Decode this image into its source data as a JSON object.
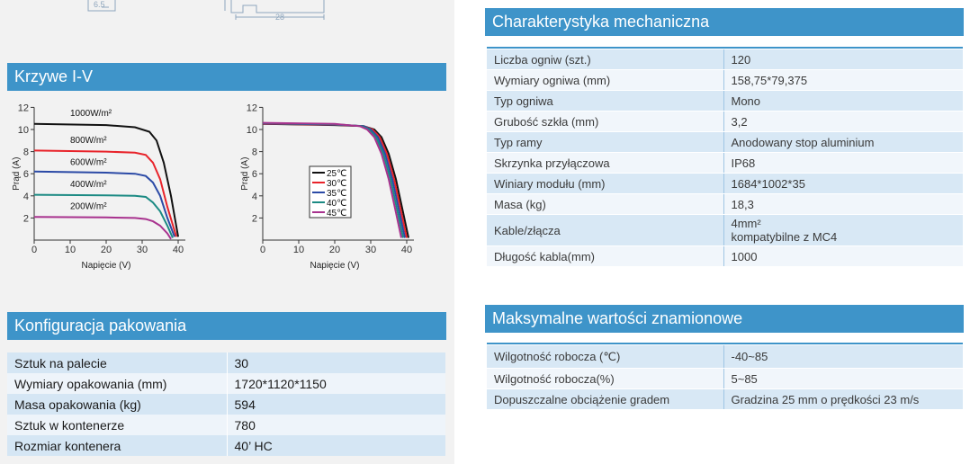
{
  "top_drawing": {
    "dim_a": "6.5",
    "dim_b": "28"
  },
  "iv_section": {
    "title": "Krzywe I-V",
    "chart_data": [
      {
        "type": "line",
        "title": "",
        "xlabel": "Napięcie (V)",
        "ylabel": "Prąd (A)",
        "xlim": [
          0,
          42
        ],
        "ylim": [
          0,
          12
        ],
        "x_ticks": [
          "0",
          "10",
          "20",
          "30",
          "40"
        ],
        "y_ticks": [
          "2",
          "4",
          "6",
          "8",
          "10",
          "12"
        ],
        "series": [
          {
            "name": "1000W/m²",
            "color": "#111111",
            "points": [
              [
                0,
                10.5
              ],
              [
                20,
                10.4
              ],
              [
                28,
                10.2
              ],
              [
                32,
                9.8
              ],
              [
                34,
                9.0
              ],
              [
                36,
                7.0
              ],
              [
                38,
                4.0
              ],
              [
                40,
                0.3
              ]
            ]
          },
          {
            "name": "800W/m²",
            "color": "#e8232a",
            "points": [
              [
                0,
                8.1
              ],
              [
                20,
                8.0
              ],
              [
                28,
                7.9
              ],
              [
                31,
                7.7
              ],
              [
                33,
                7.0
              ],
              [
                35,
                5.5
              ],
              [
                37,
                3.0
              ],
              [
                39.5,
                0.3
              ]
            ]
          },
          {
            "name": "600W/m²",
            "color": "#2b4aa6",
            "points": [
              [
                0,
                6.2
              ],
              [
                20,
                6.1
              ],
              [
                28,
                6.0
              ],
              [
                31,
                5.8
              ],
              [
                33,
                5.2
              ],
              [
                35,
                4.0
              ],
              [
                37,
                2.0
              ],
              [
                39,
                0.3
              ]
            ]
          },
          {
            "name": "400W/m²",
            "color": "#1b8a83",
            "points": [
              [
                0,
                4.1
              ],
              [
                20,
                4.05
              ],
              [
                28,
                4.0
              ],
              [
                31,
                3.9
              ],
              [
                33,
                3.4
              ],
              [
                35,
                2.6
              ],
              [
                37,
                1.3
              ],
              [
                38.5,
                0.2
              ]
            ]
          },
          {
            "name": "200W/m²",
            "color": "#a8328e",
            "points": [
              [
                0,
                2.1
              ],
              [
                20,
                2.05
              ],
              [
                28,
                2.0
              ],
              [
                31,
                1.9
              ],
              [
                33,
                1.7
              ],
              [
                35,
                1.3
              ],
              [
                37,
                0.6
              ],
              [
                38,
                0.1
              ]
            ]
          }
        ]
      },
      {
        "type": "line",
        "title": "",
        "xlabel": "Napięcie (V)",
        "ylabel": "Prąd (A)",
        "xlim": [
          0,
          42
        ],
        "ylim": [
          0,
          12
        ],
        "x_ticks": [
          "0",
          "10",
          "20",
          "30",
          "40"
        ],
        "y_ticks": [
          "2",
          "4",
          "6",
          "8",
          "10",
          "12"
        ],
        "legend": "center",
        "series": [
          {
            "name": "25℃",
            "color": "#111111",
            "points": [
              [
                0,
                10.5
              ],
              [
                20,
                10.4
              ],
              [
                28,
                10.3
              ],
              [
                31,
                10.0
              ],
              [
                33,
                9.3
              ],
              [
                35,
                7.8
              ],
              [
                37,
                5.5
              ],
              [
                39,
                2.5
              ],
              [
                40.5,
                0.2
              ]
            ]
          },
          {
            "name": "30℃",
            "color": "#e8232a",
            "points": [
              [
                0,
                10.52
              ],
              [
                20,
                10.42
              ],
              [
                28,
                10.3
              ],
              [
                30.5,
                10.0
              ],
              [
                32.5,
                9.3
              ],
              [
                34.5,
                7.8
              ],
              [
                36.5,
                5.5
              ],
              [
                38.5,
                2.5
              ],
              [
                40,
                0.2
              ]
            ]
          },
          {
            "name": "35℃",
            "color": "#2b4aa6",
            "points": [
              [
                0,
                10.55
              ],
              [
                20,
                10.45
              ],
              [
                28,
                10.3
              ],
              [
                30,
                10.0
              ],
              [
                32,
                9.3
              ],
              [
                34,
                7.8
              ],
              [
                36,
                5.5
              ],
              [
                38,
                2.5
              ],
              [
                39.5,
                0.2
              ]
            ]
          },
          {
            "name": "40℃",
            "color": "#1b8a83",
            "points": [
              [
                0,
                10.58
              ],
              [
                20,
                10.48
              ],
              [
                27.5,
                10.3
              ],
              [
                29.5,
                10.0
              ],
              [
                31.5,
                9.3
              ],
              [
                33.5,
                7.8
              ],
              [
                35.5,
                5.5
              ],
              [
                37.5,
                2.5
              ],
              [
                39,
                0.2
              ]
            ]
          },
          {
            "name": "45℃",
            "color": "#a8328e",
            "points": [
              [
                0,
                10.6
              ],
              [
                20,
                10.5
              ],
              [
                27,
                10.3
              ],
              [
                29,
                10.0
              ],
              [
                31,
                9.3
              ],
              [
                33,
                7.8
              ],
              [
                35,
                5.5
              ],
              [
                37,
                2.5
              ],
              [
                38.5,
                0.2
              ]
            ]
          }
        ]
      }
    ]
  },
  "packaging": {
    "title": "Konfiguracja pakowania",
    "rows": [
      {
        "label": "Sztuk na palecie",
        "value": "30"
      },
      {
        "label": "Wymiary opakowania (mm)",
        "value": "1720*1120*1150"
      },
      {
        "label": "Masa opakowania (kg)",
        "value": "594"
      },
      {
        "label": "Sztuk w kontenerze",
        "value": "780"
      },
      {
        "label": "Rozmiar kontenera",
        "value": "40’ HC"
      }
    ]
  },
  "mechanical": {
    "title": "Charakterystyka mechaniczna",
    "rows": [
      {
        "label": "Liczba ogniw (szt.)",
        "value": "120"
      },
      {
        "label": "Wymiary ogniwa (mm)",
        "value": "158,75*79,375"
      },
      {
        "label": "Typ ogniwa",
        "value": "Mono"
      },
      {
        "label": "Grubość szkła (mm)",
        "value": "3,2"
      },
      {
        "label": "Typ ramy",
        "value": "Anodowany stop aluminium"
      },
      {
        "label": "Skrzynka przyłączowa",
        "value": "IP68"
      },
      {
        "label": "Winiary modułu (mm)",
        "value": "1684*1002*35"
      },
      {
        "label": "Masa (kg)",
        "value": "18,3"
      },
      {
        "label": "Kable/złącza",
        "value": "4mm²",
        "value2": "kompatybilne z MC4"
      },
      {
        "label": "Długość kabla(mm)",
        "value": "1000"
      }
    ]
  },
  "max_ratings": {
    "title": "Maksymalne wartości znamionowe",
    "rows": [
      {
        "label": "Wilgotność robocza (℃)",
        "value": "-40~85"
      },
      {
        "label": "Wilgotność robocza(%)",
        "value": "5~85"
      },
      {
        "label": "Dopuszczalne obciążenie gradem",
        "value": "Gradzina 25 mm o prędkości 23 m/s"
      }
    ]
  }
}
